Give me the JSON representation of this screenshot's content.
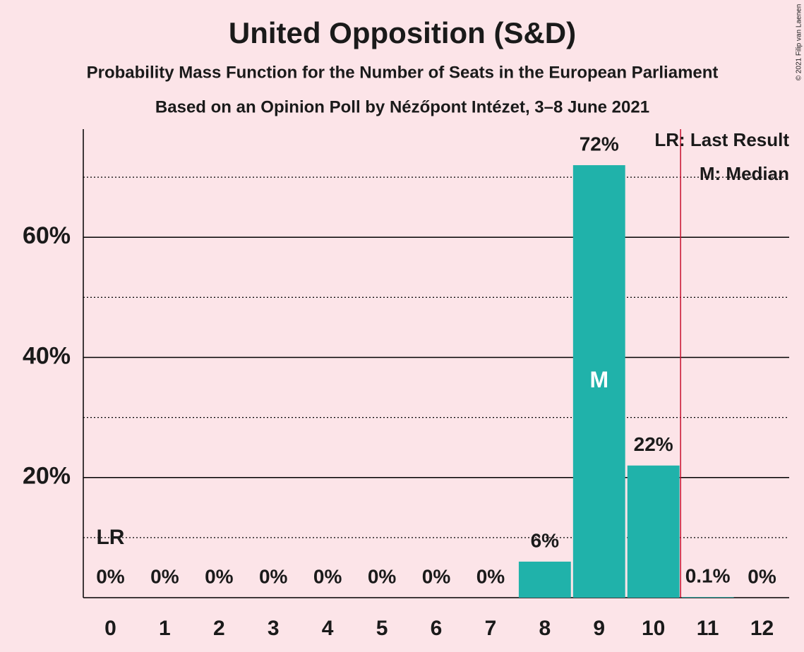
{
  "chart_data": {
    "type": "bar",
    "title": "United Opposition (S&D)",
    "subtitles": [
      "Probability Mass Function for the Number of Seats in the European Parliament",
      "Based on an Opinion Poll by Nézőpont Intézet, 3–8 June 2021"
    ],
    "categories": [
      "0",
      "1",
      "2",
      "3",
      "4",
      "5",
      "6",
      "7",
      "8",
      "9",
      "10",
      "11",
      "12"
    ],
    "values": [
      0,
      0,
      0,
      0,
      0,
      0,
      0,
      0,
      6,
      72,
      22,
      0.1,
      0
    ],
    "value_labels": [
      "0%",
      "0%",
      "0%",
      "0%",
      "0%",
      "0%",
      "0%",
      "0%",
      "6%",
      "72%",
      "22%",
      "0.1%",
      "0%"
    ],
    "color": "#20b2aa",
    "ylim": [
      0,
      78
    ],
    "yticks": [
      {
        "value": 20,
        "label": "20%"
      },
      {
        "value": 40,
        "label": "40%"
      },
      {
        "value": 60,
        "label": "60%"
      }
    ],
    "minor_yticks": [
      10,
      30,
      50,
      70
    ],
    "grid": true,
    "last_result": 0,
    "last_result_label": "LR",
    "median": 9,
    "median_label": "M",
    "majority_threshold": 10.5,
    "threshold_color": "#c8102e",
    "legend": [
      "LR: Last Result",
      "M: Median"
    ],
    "legend_position": "upper right",
    "copyright": "© 2021 Filip van Laenen"
  }
}
